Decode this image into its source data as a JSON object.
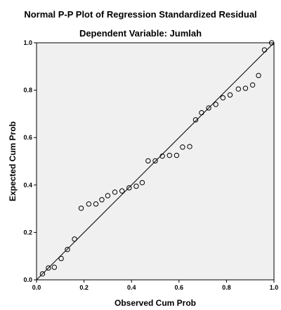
{
  "chart_data": {
    "type": "scatter",
    "title": "Normal P-P Plot of Regression Standardized Residual",
    "subtitle": "Dependent Variable: Jumlah",
    "xlabel": "Observed Cum Prob",
    "ylabel": "Expected Cum Prob",
    "xlim": [
      0,
      1
    ],
    "ylim": [
      0,
      1
    ],
    "x_ticks": [
      "0.0",
      "0.2",
      "0.4",
      "0.6",
      "0.8",
      "1.0"
    ],
    "y_ticks": [
      "0.0",
      "0.2",
      "0.4",
      "0.6",
      "0.8",
      "1.0"
    ],
    "reference_line": [
      [
        0,
        0
      ],
      [
        1,
        1
      ]
    ],
    "grid": false,
    "colors": {
      "plot_bg": "#f0f0f0",
      "marker": "#000000",
      "line": "#000000"
    },
    "points": [
      {
        "x": 0.025,
        "y": 0.025
      },
      {
        "x": 0.05,
        "y": 0.05
      },
      {
        "x": 0.075,
        "y": 0.053
      },
      {
        "x": 0.104,
        "y": 0.09
      },
      {
        "x": 0.13,
        "y": 0.128
      },
      {
        "x": 0.16,
        "y": 0.172
      },
      {
        "x": 0.188,
        "y": 0.302
      },
      {
        "x": 0.22,
        "y": 0.32
      },
      {
        "x": 0.25,
        "y": 0.32
      },
      {
        "x": 0.275,
        "y": 0.338
      },
      {
        "x": 0.3,
        "y": 0.355
      },
      {
        "x": 0.33,
        "y": 0.37
      },
      {
        "x": 0.36,
        "y": 0.375
      },
      {
        "x": 0.39,
        "y": 0.388
      },
      {
        "x": 0.42,
        "y": 0.395
      },
      {
        "x": 0.445,
        "y": 0.41
      },
      {
        "x": 0.47,
        "y": 0.502
      },
      {
        "x": 0.5,
        "y": 0.502
      },
      {
        "x": 0.53,
        "y": 0.522
      },
      {
        "x": 0.56,
        "y": 0.525
      },
      {
        "x": 0.59,
        "y": 0.525
      },
      {
        "x": 0.615,
        "y": 0.56
      },
      {
        "x": 0.645,
        "y": 0.562
      },
      {
        "x": 0.67,
        "y": 0.675
      },
      {
        "x": 0.695,
        "y": 0.705
      },
      {
        "x": 0.725,
        "y": 0.725
      },
      {
        "x": 0.755,
        "y": 0.74
      },
      {
        "x": 0.785,
        "y": 0.768
      },
      {
        "x": 0.815,
        "y": 0.78
      },
      {
        "x": 0.85,
        "y": 0.805
      },
      {
        "x": 0.88,
        "y": 0.808
      },
      {
        "x": 0.91,
        "y": 0.822
      },
      {
        "x": 0.935,
        "y": 0.862
      },
      {
        "x": 0.96,
        "y": 0.97
      },
      {
        "x": 0.99,
        "y": 1.0
      }
    ]
  }
}
